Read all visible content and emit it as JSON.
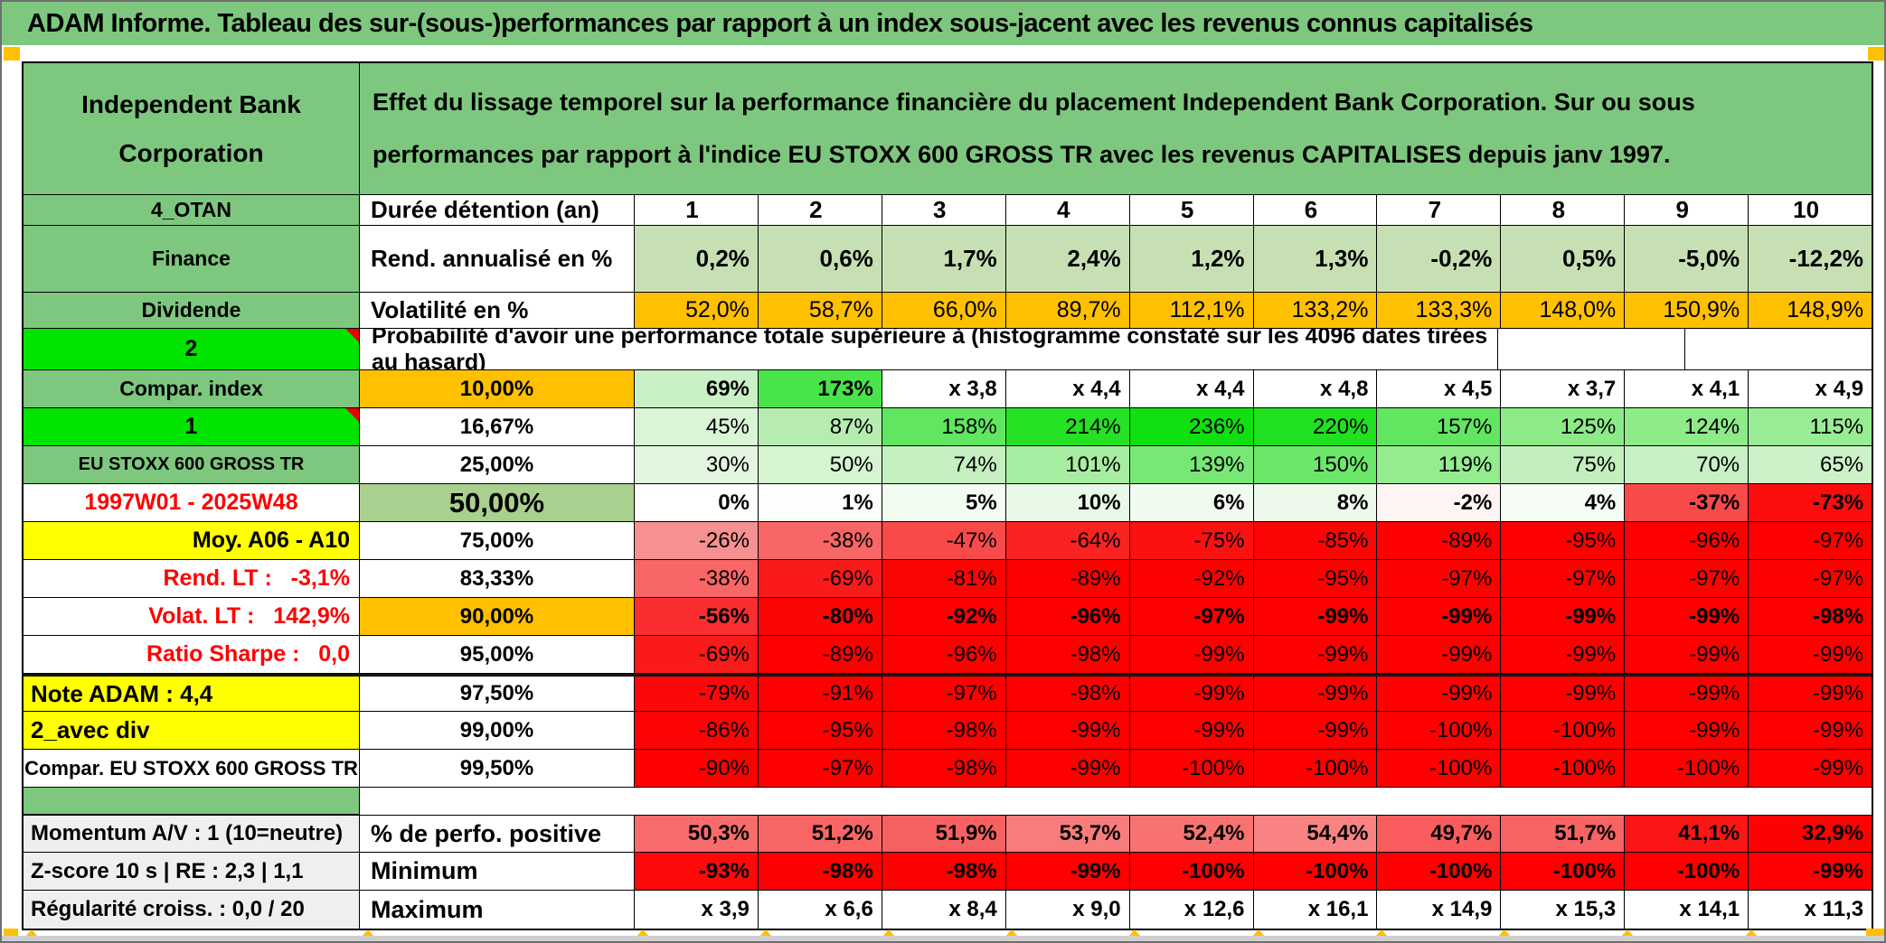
{
  "title": "ADAM Informe. Tableau des sur-(sous-)performances par rapport à un index sous-jacent avec les revenus connus capitalisés",
  "header": {
    "company": "Independent Bank Corporation",
    "description": "Effet du lissage temporel sur la performance financière du placement Independent Bank Corporation. Sur ou sous performances par rapport à l'indice EU STOXX 600 GROSS TR avec les revenus CAPITALISES depuis janv 1997."
  },
  "colors": {
    "header_green": "#7dc87e",
    "bright_green": "#00e400",
    "orange": "#ffc000",
    "sage": "#a9d08e",
    "yellow": "#ffff00",
    "finance_green": "#c6e0b4",
    "gray_label": "#efefef",
    "red_text": "#ff0000",
    "full_red": "#ff0000"
  },
  "holding": {
    "label": "4_OTAN",
    "header": "Durée détention (an)",
    "years": [
      "1",
      "2",
      "3",
      "4",
      "5",
      "6",
      "7",
      "8",
      "9",
      "10"
    ]
  },
  "finance": {
    "label": "Finance",
    "header": "Rend. annualisé en %",
    "values": [
      "0,2%",
      "0,6%",
      "1,7%",
      "2,4%",
      "1,2%",
      "1,3%",
      "-0,2%",
      "0,5%",
      "-5,0%",
      "-12,2%"
    ]
  },
  "dividende": {
    "label": "Dividende",
    "header": "Volatilité en %",
    "values": [
      "52,0%",
      "58,7%",
      "66,0%",
      "89,7%",
      "112,1%",
      "133,2%",
      "133,3%",
      "148,0%",
      "150,9%",
      "148,9%"
    ]
  },
  "probability_header": {
    "label": "2",
    "text": "Probabilité d'avoir une performance totale supérieure à (histogramme constaté sur les 4096 dates tirées au hasard)"
  },
  "prob_rows": [
    {
      "label": "Compar. index",
      "lbg": "#7dc87e",
      "lalign": "center",
      "p": "10,00%",
      "pbg": "#ffc000",
      "bold": true,
      "cells": [
        [
          "69%",
          "#c9f0c6"
        ],
        [
          "173%",
          "#49e449"
        ],
        [
          "x 3,8",
          "#ffffff"
        ],
        [
          "x 4,4",
          "#ffffff"
        ],
        [
          "x 4,4",
          "#ffffff"
        ],
        [
          "x 4,8",
          "#ffffff"
        ],
        [
          "x 4,5",
          "#ffffff"
        ],
        [
          "x 3,7",
          "#ffffff"
        ],
        [
          "x 4,1",
          "#ffffff"
        ],
        [
          "x 4,9",
          "#ffffff"
        ]
      ]
    },
    {
      "label": "1",
      "lbg": "#00e400",
      "lalign": "center",
      "lfs": 25,
      "m": true,
      "p": "16,67%",
      "pbg": "#ffffff",
      "cells": [
        [
          "45%",
          "#daf4d6"
        ],
        [
          "87%",
          "#b6ecb0"
        ],
        [
          "158%",
          "#60e660"
        ],
        [
          "214%",
          "#25e225"
        ],
        [
          "236%",
          "#0fe00f"
        ],
        [
          "220%",
          "#1fe11f"
        ],
        [
          "157%",
          "#62e662"
        ],
        [
          "125%",
          "#8ceb87"
        ],
        [
          "124%",
          "#8deb88"
        ],
        [
          "115%",
          "#98ec93"
        ]
      ]
    },
    {
      "label": "EU STOXX 600 GROSS TR",
      "lbg": "#7dc87e",
      "lalign": "center",
      "lfs": 20,
      "p": "25,00%",
      "pbg": "#ffffff",
      "cells": [
        [
          "30%",
          "#e3f7e0"
        ],
        [
          "50%",
          "#d6f3d2"
        ],
        [
          "74%",
          "#c4efc0"
        ],
        [
          "101%",
          "#a7eda1"
        ],
        [
          "139%",
          "#77e875"
        ],
        [
          "150%",
          "#6ce76a"
        ],
        [
          "119%",
          "#94ec8f"
        ],
        [
          "75%",
          "#c3efbf"
        ],
        [
          "70%",
          "#c7f0c4"
        ],
        [
          "65%",
          "#ccf1c8"
        ]
      ]
    },
    {
      "label": "1997W01 - 2025W48",
      "lbg": "#ffffff",
      "lcol": "#ff0000",
      "lalign": "center",
      "lfs": 25,
      "p": "50,00%",
      "pbg": "#a9d08e",
      "pfs": 31,
      "bold": true,
      "cells": [
        [
          "0%",
          "#ffffff"
        ],
        [
          "1%",
          "#fcfefc"
        ],
        [
          "5%",
          "#f2fcf1"
        ],
        [
          "10%",
          "#e9f9e7"
        ],
        [
          "6%",
          "#f0fbef"
        ],
        [
          "8%",
          "#edfaeb"
        ],
        [
          "-2%",
          "#fef4f4"
        ],
        [
          "4%",
          "#f5fcf4"
        ],
        [
          "-37%",
          "#f94a4a"
        ],
        [
          "-73%",
          "#fc0d0d"
        ]
      ]
    },
    {
      "label": "Moy. A06 - A10",
      "lbg": "#ffff00",
      "lalign": "right",
      "lfs": 25,
      "p": "75,00%",
      "pbg": "#ffffff",
      "cells": [
        [
          "-26%",
          "#f79090"
        ],
        [
          "-38%",
          "#f86666"
        ],
        [
          "-47%",
          "#f94a4a"
        ],
        [
          "-64%",
          "#fb2222"
        ],
        [
          "-75%",
          "#fc1111"
        ],
        [
          "-85%",
          "#fd0505"
        ],
        [
          "-89%",
          "#fe0000"
        ],
        [
          "-95%",
          "#ff0000"
        ],
        [
          "-96%",
          "#ff0000"
        ],
        [
          "-97%",
          "#ff0000"
        ]
      ]
    },
    {
      "label": "Rend. LT :   -3,1%",
      "lbg": "#ffffff",
      "lcol": "#ff0000",
      "lalign": "right",
      "lfs": 25,
      "p": "83,33%",
      "pbg": "#ffffff",
      "cells": [
        [
          "-38%",
          "#f86666"
        ],
        [
          "-69%",
          "#fb1a1a"
        ],
        [
          "-81%",
          "#fd0404"
        ],
        [
          "-89%",
          "#fe0000"
        ],
        [
          "-92%",
          "#ff0000"
        ],
        [
          "-95%",
          "#ff0000"
        ],
        [
          "-97%",
          "#ff0000"
        ],
        [
          "-97%",
          "#ff0000"
        ],
        [
          "-97%",
          "#ff0000"
        ],
        [
          "-97%",
          "#ff0000"
        ]
      ]
    },
    {
      "label": "Volat. LT :   142,9%",
      "lbg": "#ffffff",
      "lcol": "#ff0000",
      "lalign": "right",
      "lfs": 25,
      "p": "90,00%",
      "pbg": "#ffc000",
      "bold": true,
      "cells": [
        [
          "-56%",
          "#fa2e2e"
        ],
        [
          "-80%",
          "#fd0505"
        ],
        [
          "-92%",
          "#ff0000"
        ],
        [
          "-96%",
          "#ff0000"
        ],
        [
          "-97%",
          "#ff0000"
        ],
        [
          "-99%",
          "#ff0000"
        ],
        [
          "-99%",
          "#ff0000"
        ],
        [
          "-99%",
          "#ff0000"
        ],
        [
          "-99%",
          "#ff0000"
        ],
        [
          "-98%",
          "#ff0000"
        ]
      ]
    },
    {
      "label": "Ratio Sharpe :   0,0",
      "lbg": "#ffffff",
      "lcol": "#ff0000",
      "lalign": "right",
      "lfs": 25,
      "p": "95,00%",
      "pbg": "#ffffff",
      "cells": [
        [
          "-69%",
          "#fb1a1a"
        ],
        [
          "-89%",
          "#fe0000"
        ],
        [
          "-96%",
          "#ff0000"
        ],
        [
          "-98%",
          "#ff0000"
        ],
        [
          "-99%",
          "#ff0000"
        ],
        [
          "-99%",
          "#ff0000"
        ],
        [
          "-99%",
          "#ff0000"
        ],
        [
          "-99%",
          "#ff0000"
        ],
        [
          "-99%",
          "#ff0000"
        ],
        [
          "-99%",
          "#ff0000"
        ]
      ]
    },
    {
      "label": "Note ADAM : 4,4",
      "lbg": "#ffff00",
      "lalign": "left",
      "lfs": 26,
      "thick": true,
      "p": "97,50%",
      "pbg": "#ffffff",
      "cells": [
        [
          "-79%",
          "#fd0808"
        ],
        [
          "-91%",
          "#fe0000"
        ],
        [
          "-97%",
          "#ff0000"
        ],
        [
          "-98%",
          "#ff0000"
        ],
        [
          "-99%",
          "#ff0000"
        ],
        [
          "-99%",
          "#ff0000"
        ],
        [
          "-99%",
          "#ff0000"
        ],
        [
          "-99%",
          "#ff0000"
        ],
        [
          "-99%",
          "#ff0000"
        ],
        [
          "-99%",
          "#ff0000"
        ]
      ]
    },
    {
      "label": "2_avec div",
      "lbg": "#ffff00",
      "lalign": "left",
      "lfs": 26,
      "p": "99,00%",
      "pbg": "#ffffff",
      "cells": [
        [
          "-86%",
          "#fe0303"
        ],
        [
          "-95%",
          "#ff0000"
        ],
        [
          "-98%",
          "#ff0000"
        ],
        [
          "-99%",
          "#ff0000"
        ],
        [
          "-99%",
          "#ff0000"
        ],
        [
          "-99%",
          "#ff0000"
        ],
        [
          "-100%",
          "#ff0000"
        ],
        [
          "-100%",
          "#ff0000"
        ],
        [
          "-99%",
          "#ff0000"
        ],
        [
          "-99%",
          "#ff0000"
        ]
      ]
    },
    {
      "label": "Compar. EU STOXX 600 GROSS TR",
      "lbg": "#ffffff",
      "lalign": "center",
      "lfs": 22,
      "p": "99,50%",
      "pbg": "#ffffff",
      "cells": [
        [
          "-90%",
          "#fe0000"
        ],
        [
          "-97%",
          "#ff0000"
        ],
        [
          "-98%",
          "#ff0000"
        ],
        [
          "-99%",
          "#ff0000"
        ],
        [
          "-100%",
          "#ff0000"
        ],
        [
          "-100%",
          "#ff0000"
        ],
        [
          "-100%",
          "#ff0000"
        ],
        [
          "-100%",
          "#ff0000"
        ],
        [
          "-100%",
          "#ff0000"
        ],
        [
          "-99%",
          "#ff0000"
        ]
      ]
    }
  ],
  "bottom_rows": [
    {
      "label": "Momentum A/V : 1 (10=neutre)",
      "p": "% de perfo. positive",
      "bold": true,
      "cells": [
        [
          "50,3%",
          "#f86c6c"
        ],
        [
          "51,2%",
          "#f86666"
        ],
        [
          "51,9%",
          "#f86161"
        ],
        [
          "53,7%",
          "#f97c7c"
        ],
        [
          "52,4%",
          "#f87272"
        ],
        [
          "54,4%",
          "#f98383"
        ],
        [
          "49,7%",
          "#f85c5c"
        ],
        [
          "51,7%",
          "#f86363"
        ],
        [
          "41,1%",
          "#fb1616"
        ],
        [
          "32,9%",
          "#fe0202"
        ]
      ]
    },
    {
      "label": "Z-score 10 s | RE : 2,3 | 1,1",
      "p": "Minimum",
      "bold": true,
      "cells": [
        [
          "-93%",
          "#fc0909"
        ],
        [
          "-98%",
          "#fe0101"
        ],
        [
          "-98%",
          "#fe0101"
        ],
        [
          "-99%",
          "#ff0000"
        ],
        [
          "-100%",
          "#ff0000"
        ],
        [
          "-100%",
          "#ff0000"
        ],
        [
          "-100%",
          "#ff0000"
        ],
        [
          "-100%",
          "#ff0000"
        ],
        [
          "-100%",
          "#ff0000"
        ],
        [
          "-99%",
          "#ff0000"
        ]
      ]
    },
    {
      "label": "Régularité croiss. : 0,0 / 20",
      "p": "Maximum",
      "bold": true,
      "cells": [
        [
          "x 3,9",
          "#ffffff"
        ],
        [
          "x 6,6",
          "#ffffff"
        ],
        [
          "x 8,4",
          "#ffffff"
        ],
        [
          "x 9,0",
          "#ffffff"
        ],
        [
          "x 12,6",
          "#ffffff"
        ],
        [
          "x 16,1",
          "#ffffff"
        ],
        [
          "x 14,9",
          "#ffffff"
        ],
        [
          "x 15,3",
          "#ffffff"
        ],
        [
          "x 14,1",
          "#ffffff"
        ],
        [
          "x 11,3",
          "#ffffff"
        ]
      ]
    }
  ]
}
